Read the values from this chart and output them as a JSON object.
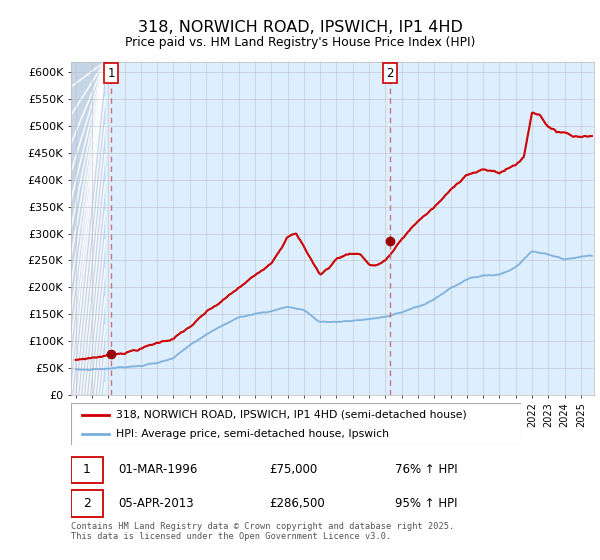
{
  "title": "318, NORWICH ROAD, IPSWICH, IP1 4HD",
  "subtitle": "Price paid vs. HM Land Registry's House Price Index (HPI)",
  "ylim": [
    0,
    620000
  ],
  "yticks": [
    0,
    50000,
    100000,
    150000,
    200000,
    250000,
    300000,
    350000,
    400000,
    450000,
    500000,
    550000,
    600000
  ],
  "ytick_labels": [
    "£0",
    "£50K",
    "£100K",
    "£150K",
    "£200K",
    "£250K",
    "£300K",
    "£350K",
    "£400K",
    "£450K",
    "£500K",
    "£550K",
    "£600K"
  ],
  "xlim_start": 1993.7,
  "xlim_end": 2025.8,
  "sale1_x": 1996.17,
  "sale1_y": 75000,
  "sale2_x": 2013.26,
  "sale2_y": 286500,
  "line1_color": "#cc0000",
  "line2_color": "#7aaedc",
  "marker_color": "#990000",
  "dashed_color": "#cc6666",
  "legend1_label": "318, NORWICH ROAD, IPSWICH, IP1 4HD (semi-detached house)",
  "legend2_label": "HPI: Average price, semi-detached house, Ipswich",
  "sale1_date": "01-MAR-1996",
  "sale1_price": "£75,000",
  "sale1_hpi": "76% ↑ HPI",
  "sale2_date": "05-APR-2013",
  "sale2_price": "£286,500",
  "sale2_hpi": "95% ↑ HPI",
  "footer": "Contains HM Land Registry data © Crown copyright and database right 2025.\nThis data is licensed under the Open Government Licence v3.0.",
  "grid_color": "#bbbbbb",
  "bg_color": "#ddeeff",
  "hatch_bg_color": "#c8d8ee",
  "background_color": "#ffffff"
}
